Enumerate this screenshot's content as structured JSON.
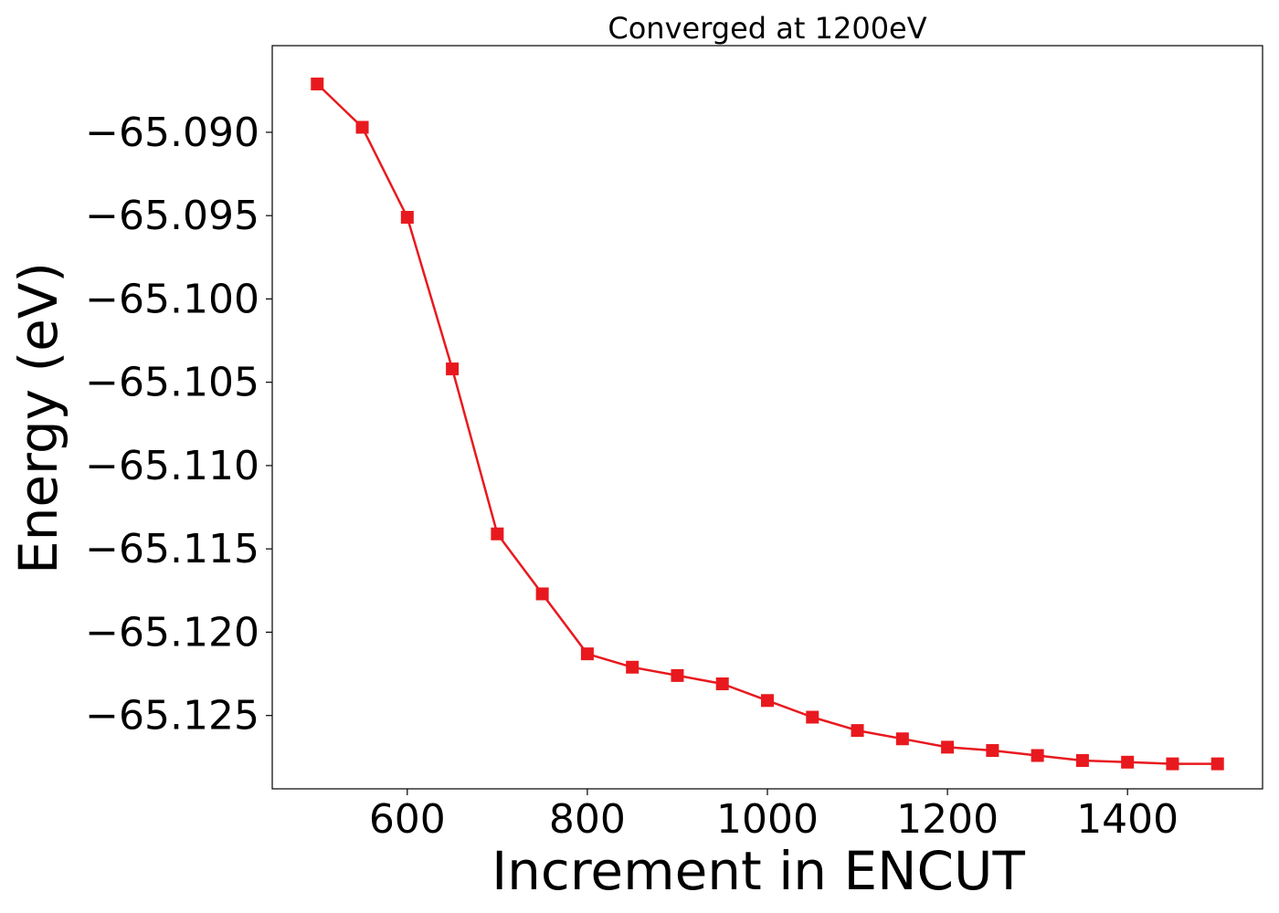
{
  "chart_data": {
    "type": "line",
    "title": "Converged at 1200eV",
    "xlabel": "Increment in ENCUT",
    "ylabel": "Energy (eV)",
    "xlim": [
      450,
      1550
    ],
    "ylim": [
      -65.1294,
      -65.0848
    ],
    "xticks": [
      600,
      800,
      1000,
      1200,
      1400
    ],
    "xtick_labels": [
      "600",
      "800",
      "1000",
      "1200",
      "1400"
    ],
    "yticks": [
      -65.09,
      -65.095,
      -65.1,
      -65.105,
      -65.11,
      -65.115,
      -65.12,
      -65.125
    ],
    "ytick_labels": [
      "−65.090",
      "−65.095",
      "−65.100",
      "−65.105",
      "−65.110",
      "−65.115",
      "−65.120",
      "−65.125"
    ],
    "grid": false,
    "series": [
      {
        "color": "#e8191e",
        "marker": "square",
        "x": [
          500,
          550,
          600,
          650,
          700,
          750,
          800,
          850,
          900,
          950,
          1000,
          1050,
          1100,
          1150,
          1200,
          1250,
          1300,
          1350,
          1400,
          1450,
          1500
        ],
        "y": [
          -65.0871,
          -65.0897,
          -65.0951,
          -65.1042,
          -65.1141,
          -65.1177,
          -65.1213,
          -65.1221,
          -65.1226,
          -65.1231,
          -65.1241,
          -65.1251,
          -65.1259,
          -65.1264,
          -65.1269,
          -65.1271,
          -65.1274,
          -65.1277,
          -65.1278,
          -65.1279,
          -65.1279
        ]
      }
    ]
  }
}
